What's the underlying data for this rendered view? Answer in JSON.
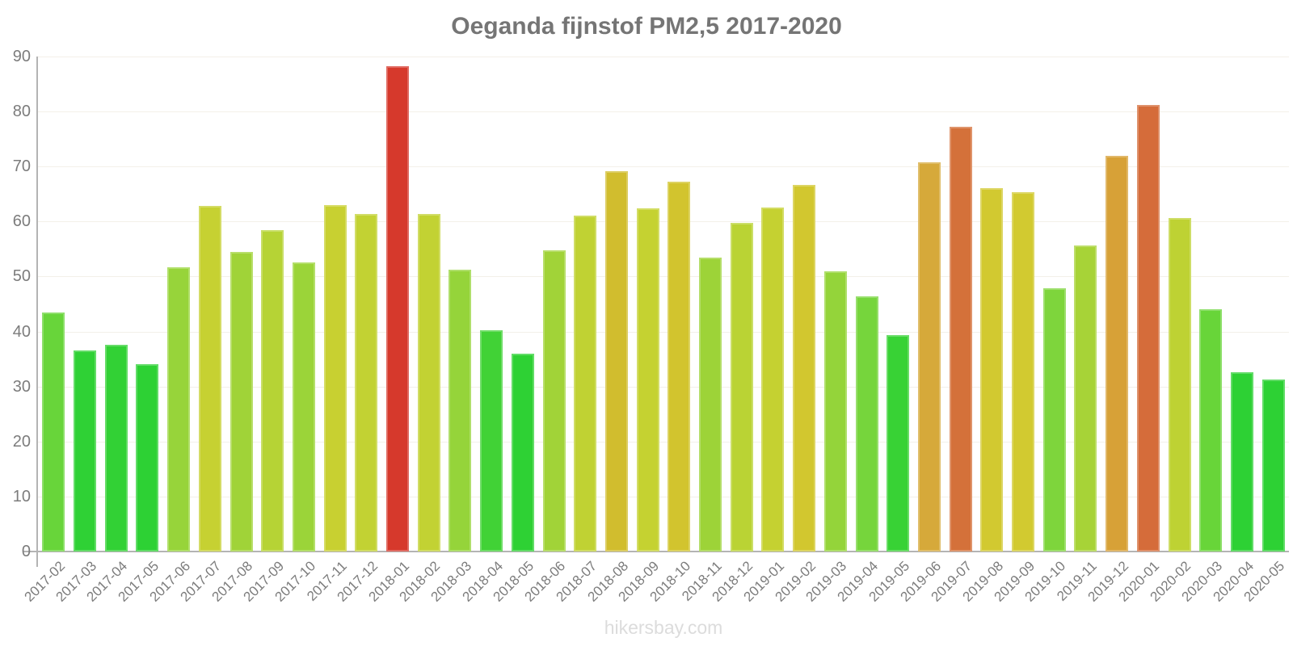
{
  "chart_data": {
    "type": "bar",
    "title": "Oeganda fijnstof PM2,5 2017-2020",
    "watermark": "hikersbay.com",
    "xlabel": "",
    "ylabel": "",
    "ylim": [
      0,
      90
    ],
    "ytick_step": 10,
    "grid": true,
    "legend": false,
    "categories": [
      "2017-02",
      "2017-03",
      "2017-04",
      "2017-05",
      "2017-06",
      "2017-07",
      "2017-08",
      "2017-09",
      "2017-10",
      "2017-11",
      "2017-12",
      "2018-01",
      "2018-02",
      "2018-03",
      "2018-04",
      "2018-05",
      "2018-06",
      "2018-07",
      "2018-08",
      "2018-09",
      "2018-10",
      "2018-11",
      "2018-12",
      "2019-01",
      "2019-02",
      "2019-03",
      "2019-04",
      "2019-05",
      "2019-06",
      "2019-07",
      "2019-08",
      "2019-09",
      "2019-10",
      "2019-11",
      "2019-12",
      "2020-01",
      "2020-02",
      "2020-03",
      "2020-04",
      "2020-05"
    ],
    "values": [
      43.4,
      36.6,
      37.6,
      34.1,
      51.7,
      62.8,
      54.4,
      58.5,
      52.6,
      63.0,
      61.4,
      88.2,
      61.4,
      51.3,
      40.3,
      35.9,
      54.7,
      61.1,
      69.1,
      62.4,
      67.3,
      53.4,
      59.8,
      62.6,
      66.6,
      51.0,
      46.4,
      39.4,
      70.7,
      77.3,
      66.1,
      65.3,
      47.8,
      55.7,
      71.9,
      81.2,
      60.7,
      44.0,
      32.6,
      31.3
    ],
    "bar_colors": [
      "#68d53a",
      "#2fd135",
      "#32d135",
      "#2dd134",
      "#97d43a",
      "#c6d132",
      "#a0d338",
      "#b6d335",
      "#9bd439",
      "#c8d031",
      "#c2d233",
      "#d6392c",
      "#c2d233",
      "#95d43a",
      "#41d236",
      "#2ed134",
      "#a1d338",
      "#c0d233",
      "#d1bd2e",
      "#c5d231",
      "#d2c42e",
      "#9dd338",
      "#bad334",
      "#c5d131",
      "#d2c72f",
      "#94d43a",
      "#76d53c",
      "#38d235",
      "#d6a93a",
      "#d4713a",
      "#d2c930",
      "#d2ca30",
      "#7ed53c",
      "#a7d337",
      "#d7a137",
      "#d56c3a",
      "#bed233",
      "#68d539",
      "#2dd134",
      "#2dd134"
    ],
    "colors": {
      "title": "#757575",
      "axis_line": "#b4b4b4",
      "grid_line": "#f3f0e9",
      "tick_label": "#7c7c7c",
      "watermark": "#dcdcdc"
    }
  }
}
